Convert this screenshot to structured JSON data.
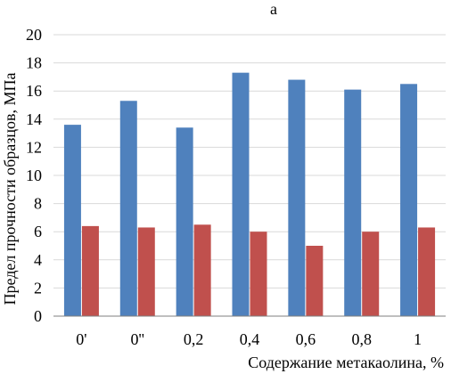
{
  "panel_label": "а",
  "chart_data": {
    "type": "bar",
    "title": "",
    "xlabel": "Содержание метакаолина, %",
    "ylabel": "Предел прочности образцов, МПа",
    "categories": [
      "0'",
      "0''",
      "0,2",
      "0,4",
      "0,6",
      "0,8",
      "1"
    ],
    "ylim": [
      0,
      20
    ],
    "yticks": [
      0,
      2,
      4,
      6,
      8,
      10,
      12,
      14,
      16,
      18,
      20
    ],
    "grid": true,
    "legend": "none",
    "series": [
      {
        "values": [
          13.6,
          15.3,
          13.4,
          17.3,
          16.8,
          16.1,
          16.5
        ],
        "color": "#4f81bd"
      },
      {
        "values": [
          6.4,
          6.3,
          6.5,
          6.0,
          5.0,
          6.0,
          6.3
        ],
        "color": "#c0504d"
      }
    ]
  }
}
